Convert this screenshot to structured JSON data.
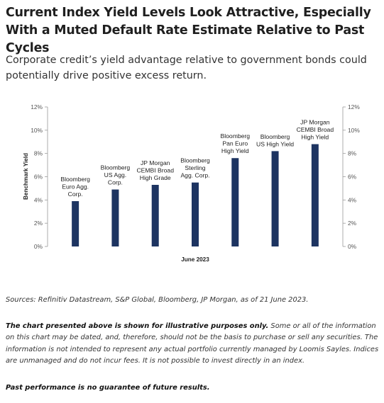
{
  "header": {
    "title": "Current Index Yield Levels Look Attractive, Especially With a Muted Default Rate Estimate Relative to Past Cycles",
    "subtitle": "Corporate credit’s yield advantage relative to government bonds could potentially drive positive excess return."
  },
  "chart_data": {
    "type": "bar",
    "categories": [
      [
        "Bloomberg",
        "Euro Agg.",
        "Corp."
      ],
      [
        "Bloomberg",
        "US Agg.",
        "Corp."
      ],
      [
        "JP Morgan",
        "CEMBI Broad",
        "High Grade"
      ],
      [
        "Bloomberg",
        "Sterling",
        "Agg. Corp."
      ],
      [
        "Bloomberg",
        "Pan Euro",
        "High Yield"
      ],
      [
        "Bloomberg",
        "US High Yield"
      ],
      [
        "JP Morgan",
        "CEMBI Broad",
        "High Yield"
      ]
    ],
    "values": [
      3.9,
      4.9,
      5.3,
      5.5,
      7.6,
      8.2,
      8.8
    ],
    "ylabel": "Benchmark Yield",
    "xlabel": "June 2023",
    "ylim": [
      0,
      12
    ],
    "yticks": [
      "0%",
      "2%",
      "4%",
      "6%",
      "8%",
      "10%",
      "12%"
    ],
    "bar_color": "#1d3461",
    "grid": false
  },
  "footer": {
    "sources": "Sources: Refinitiv Datastream, S&P Global, Bloomberg, JP Morgan, as of 21 June 2023.",
    "disclaimer_bold": "The chart presented above is shown for illustrative purposes only.",
    "disclaimer_rest": " Some or all of the information on this chart may be dated, and, therefore, should not be the basis to purchase or sell any securities. The information is not intended to represent any actual portfolio currently managed by Loomis Sayles. Indices are unmanaged and do not incur fees. It is not possible to invest directly in an index.",
    "past_performance": "Past performance is no guarantee of future results."
  }
}
